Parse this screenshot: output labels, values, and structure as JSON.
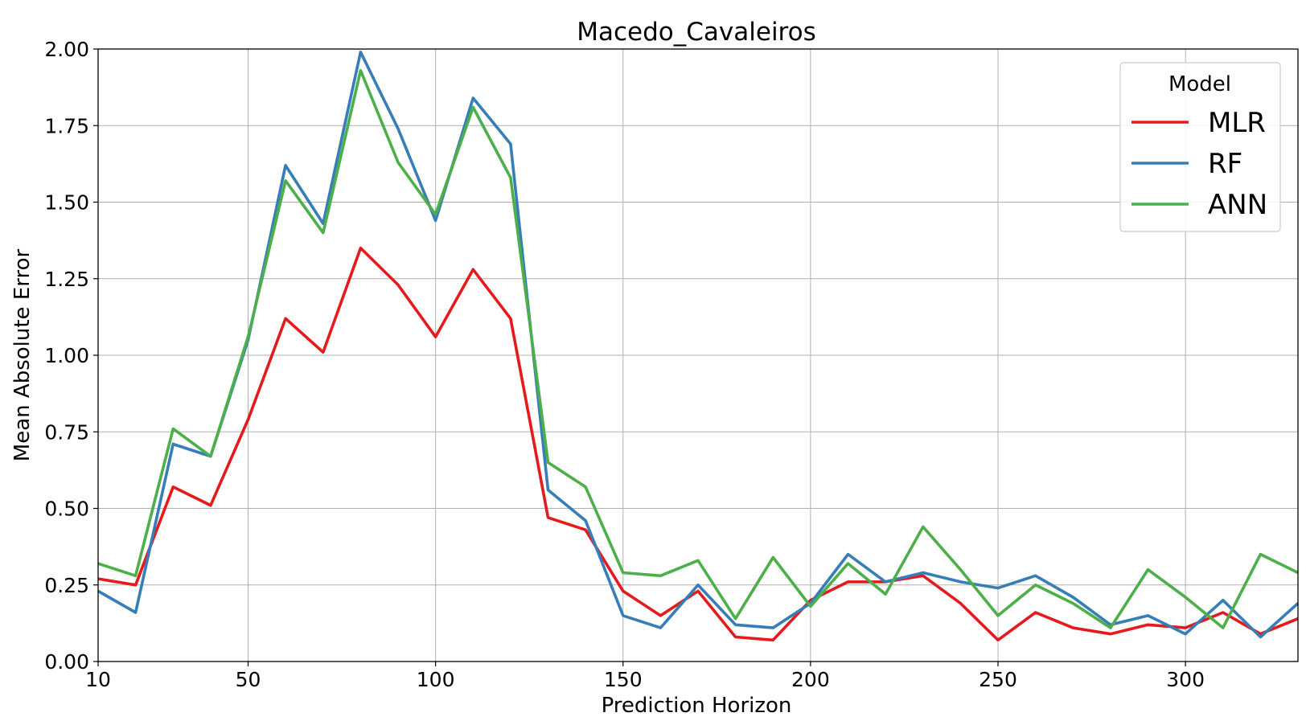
{
  "chart_data": {
    "type": "line",
    "title": "Macedo_Cavaleiros",
    "xlabel": "Prediction Horizon",
    "ylabel": "Mean Absolute Error",
    "xlim": [
      10,
      330
    ],
    "ylim": [
      0,
      2.0
    ],
    "x_ticks": [
      10,
      50,
      100,
      150,
      200,
      250,
      300
    ],
    "y_ticks": [
      0.0,
      0.25,
      0.5,
      0.75,
      1.0,
      1.25,
      1.5,
      1.75,
      2.0
    ],
    "y_tick_labels": [
      "0.00",
      "0.25",
      "0.50",
      "0.75",
      "1.00",
      "1.25",
      "1.50",
      "1.75",
      "2.00"
    ],
    "grid": true,
    "legend": {
      "title": "Model",
      "placement": "top-right"
    },
    "x": [
      10,
      20,
      30,
      40,
      50,
      60,
      70,
      80,
      90,
      100,
      110,
      120,
      130,
      140,
      150,
      160,
      170,
      180,
      190,
      200,
      210,
      220,
      230,
      240,
      250,
      260,
      270,
      280,
      290,
      300,
      310,
      320,
      330
    ],
    "series": [
      {
        "name": "MLR",
        "color": "#e41a1c",
        "values": [
          0.27,
          0.25,
          0.57,
          0.51,
          0.79,
          1.12,
          1.01,
          1.35,
          1.23,
          1.06,
          1.28,
          1.12,
          0.47,
          0.43,
          0.23,
          0.15,
          0.23,
          0.08,
          0.07,
          0.2,
          0.26,
          0.26,
          0.28,
          0.19,
          0.07,
          0.16,
          0.11,
          0.09,
          0.12,
          0.11,
          0.16,
          0.09,
          0.14
        ]
      },
      {
        "name": "RF",
        "color": "#377eb8",
        "values": [
          0.23,
          0.16,
          0.71,
          0.67,
          1.05,
          1.62,
          1.43,
          1.99,
          1.74,
          1.44,
          1.84,
          1.69,
          0.56,
          0.46,
          0.15,
          0.11,
          0.25,
          0.12,
          0.11,
          0.19,
          0.35,
          0.26,
          0.29,
          0.26,
          0.24,
          0.28,
          0.21,
          0.12,
          0.15,
          0.09,
          0.2,
          0.08,
          0.19
        ]
      },
      {
        "name": "ANN",
        "color": "#4daf4a",
        "values": [
          0.32,
          0.28,
          0.76,
          0.67,
          1.06,
          1.57,
          1.4,
          1.93,
          1.63,
          1.46,
          1.81,
          1.58,
          0.65,
          0.57,
          0.29,
          0.28,
          0.33,
          0.14,
          0.34,
          0.18,
          0.32,
          0.22,
          0.44,
          0.3,
          0.15,
          0.25,
          0.19,
          0.11,
          0.3,
          0.21,
          0.11,
          0.35,
          0.29
        ]
      }
    ]
  }
}
